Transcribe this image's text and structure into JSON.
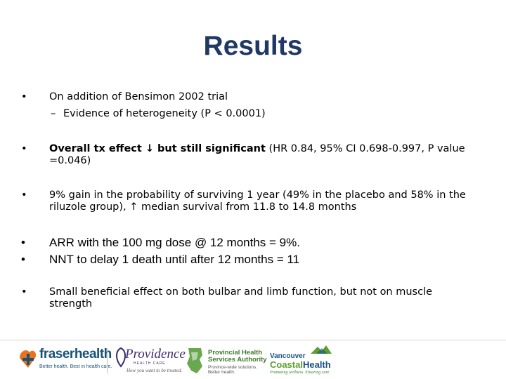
{
  "title": "Results",
  "bullets": {
    "b1": "On addition of Bensimon 2002 trial",
    "b1_sub": "Evidence of heterogeneity (P < 0.0001)",
    "b2_bold": "Overall tx effect ↓ but still significant",
    "b2_rest": " (HR 0.84, 95% CI 0.698-0.997, P value =0.046)",
    "b3": "9% gain in the probability of surviving 1 year (49% in the placebo and 58% in the riluzole group), ↑ median survival from 11.8 to 14.8 months",
    "b4": "ARR with the 100 mg dose @ 12 months = 9%.",
    "b5": "NNT to delay 1 death until after 12 months = 11",
    "b6": "Small beneficial effect on both bulbar and limb function, but not on muscle strength"
  },
  "markers": {
    "bullet": "•",
    "dash": "–"
  },
  "footer": {
    "fraserhealth": {
      "name": "fraserhealth",
      "tagline": "Better health. Best in health care."
    },
    "providence": {
      "name": "Providence",
      "sub": "HEALTH CARE",
      "tagline": "How you want to be treated."
    },
    "phsa": {
      "line1": "Provincial Health",
      "line2": "Services Authority",
      "tag1": "Province-wide solutions.",
      "tag2": "Better health."
    },
    "vch": {
      "line1": "Vancouver",
      "line2a": "Coastal",
      "line2b": "Health",
      "tagline": "Promoting wellness. Ensuring care."
    }
  },
  "colors": {
    "title": "#1f3864",
    "fraser": "#1a5276",
    "providence": "#3b2a73",
    "phsa": "#3d7a2b",
    "vch": "#1a4f8a"
  }
}
